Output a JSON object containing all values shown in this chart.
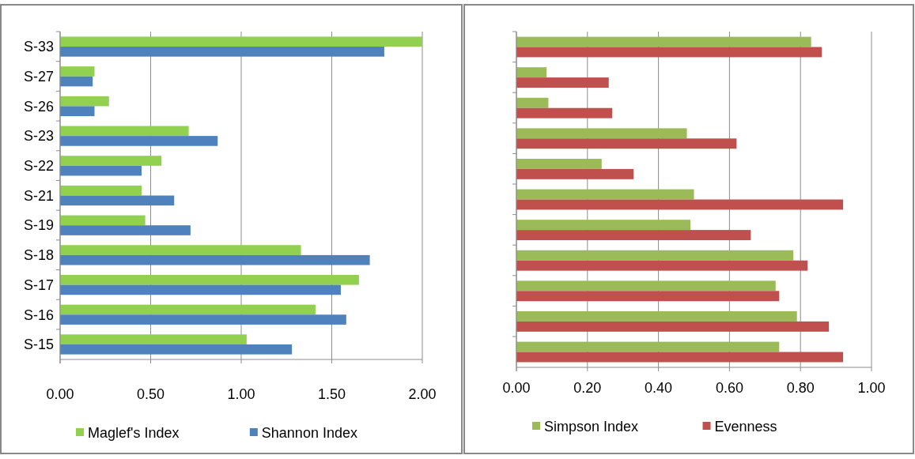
{
  "chart_data": [
    {
      "type": "bar",
      "orientation": "horizontal",
      "categories": [
        "S-33",
        "S-27",
        "S-26",
        "S-23",
        "S-22",
        "S-21",
        "S-19",
        "S-18",
        "S-17",
        "S-16",
        "S-15"
      ],
      "series": [
        {
          "name": "Maglef's Index",
          "color": "#92d050",
          "values": [
            2.0,
            0.19,
            0.27,
            0.71,
            0.56,
            0.45,
            0.47,
            1.33,
            1.65,
            1.41,
            1.03
          ]
        },
        {
          "name": "Shannon Index",
          "color": "#4f81bd",
          "values": [
            1.79,
            0.18,
            0.19,
            0.87,
            0.45,
            0.63,
            0.72,
            1.71,
            1.55,
            1.58,
            1.28
          ]
        }
      ],
      "xlim": [
        0,
        2
      ],
      "xticks": [
        {
          "value": 0,
          "label": "0.00"
        },
        {
          "value": 0.5,
          "label": "0.50"
        },
        {
          "value": 1,
          "label": "1.00"
        },
        {
          "value": 1.5,
          "label": "1.50"
        },
        {
          "value": 2,
          "label": "2.00"
        }
      ],
      "grid": "x",
      "legend": "bottom"
    },
    {
      "type": "bar",
      "orientation": "horizontal",
      "categories": [
        null,
        null,
        null,
        null,
        null,
        null,
        null,
        null,
        null,
        null,
        null
      ],
      "series": [
        {
          "name": "Simpson Index",
          "color": "#9bbb59",
          "values": [
            0.83,
            0.085,
            0.09,
            0.48,
            0.24,
            0.5,
            0.49,
            0.78,
            0.73,
            0.79,
            0.74
          ]
        },
        {
          "name": "Evenness",
          "color": "#c0504d",
          "values": [
            0.86,
            0.26,
            0.27,
            0.62,
            0.33,
            0.92,
            0.66,
            0.82,
            0.74,
            0.88,
            0.92
          ]
        }
      ],
      "xlim": [
        0,
        1
      ],
      "xticks": [
        {
          "value": 0,
          "label": "0.00"
        },
        {
          "value": 0.2,
          "label": "0.20"
        },
        {
          "value": 0.4,
          "label": "0.40"
        },
        {
          "value": 0.6,
          "label": "0.60"
        },
        {
          "value": 0.8,
          "label": "0.80"
        },
        {
          "value": 1,
          "label": "1.00"
        }
      ],
      "grid": "x",
      "legend": "bottom",
      "tick_labels": "x"
    }
  ]
}
